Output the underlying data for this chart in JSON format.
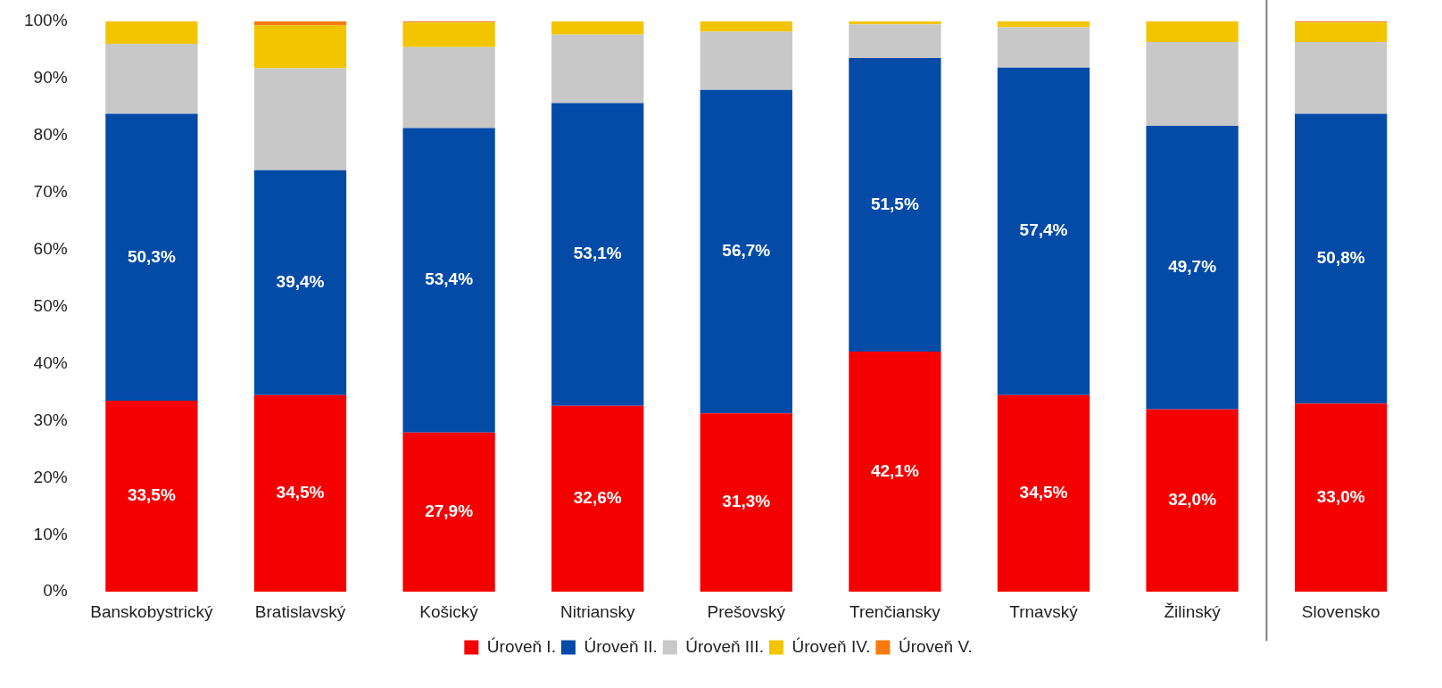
{
  "chart_data": {
    "type": "bar",
    "stacked": true,
    "categories": [
      "Banskobystrický",
      "Bratislavský",
      "Košický",
      "Nitriansky",
      "Prešovský",
      "Trenčiansky",
      "Trnavský",
      "Žilinský",
      "Slovensko"
    ],
    "series": [
      {
        "name": "Úroveň I.",
        "color": "#f50000",
        "values": [
          33.5,
          34.5,
          27.9,
          32.6,
          31.3,
          42.1,
          34.5,
          32.0,
          33.0
        ],
        "value_labels": [
          "33,5%",
          "34,5%",
          "27,9%",
          "32,6%",
          "31,3%",
          "42,1%",
          "34,5%",
          "32,0%",
          "33,0%"
        ]
      },
      {
        "name": "Úroveň II.",
        "color": "#044ba8",
        "values": [
          50.3,
          39.4,
          53.4,
          53.1,
          56.7,
          51.5,
          57.4,
          49.7,
          50.8
        ],
        "value_labels": [
          "50,3%",
          "39,4%",
          "53,4%",
          "53,1%",
          "56,7%",
          "51,5%",
          "57,4%",
          "49,7%",
          "50,8%"
        ]
      },
      {
        "name": "Úroveň III.",
        "color": "#c8c8c8",
        "values": [
          12.3,
          17.9,
          14.2,
          12.0,
          10.2,
          5.9,
          7.1,
          14.7,
          12.6
        ]
      },
      {
        "name": "Úroveň IV.",
        "color": "#f2c500",
        "values": [
          3.9,
          7.5,
          4.3,
          2.3,
          1.8,
          0.5,
          1.0,
          3.6,
          3.4
        ]
      },
      {
        "name": "Úroveň V.",
        "color": "#f77b0c",
        "values": [
          0,
          0.7,
          0.2,
          0,
          0,
          0,
          0,
          0,
          0.2
        ]
      }
    ],
    "ylim": [
      0,
      100
    ],
    "yticks": [
      {
        "value": 0,
        "label": "0%"
      },
      {
        "value": 10,
        "label": "10%"
      },
      {
        "value": 20,
        "label": "20%"
      },
      {
        "value": 30,
        "label": "30%"
      },
      {
        "value": 40,
        "label": "40%"
      },
      {
        "value": 50,
        "label": "50%"
      },
      {
        "value": 60,
        "label": "60%"
      },
      {
        "value": 70,
        "label": "70%"
      },
      {
        "value": 80,
        "label": "80%"
      },
      {
        "value": 90,
        "label": "90%"
      },
      {
        "value": 100,
        "label": "100%"
      }
    ],
    "grid": false,
    "legend": "bottom"
  }
}
